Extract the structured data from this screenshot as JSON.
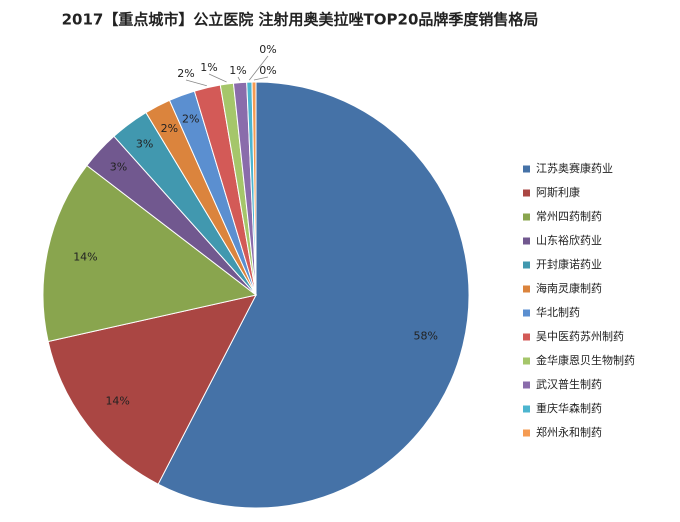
{
  "chart_data": {
    "type": "pie",
    "title": "2017【重点城市】公立医院 注射用奥美拉唑TOP20品牌季度销售格局",
    "categories": [
      "江苏奥赛康药业",
      "阿斯利康",
      "常州四药制药",
      "山东裕欣药业",
      "开封康诺药业",
      "海南灵康制药",
      "华北制药",
      "吴中医药苏州制药",
      "金华康恩贝生物制药",
      "武汉普生制药",
      "重庆华森制药",
      "郑州永和制药"
    ],
    "values": [
      58,
      14,
      14,
      3,
      3,
      2,
      2,
      2,
      1,
      1,
      0.4,
      0.3
    ],
    "value_labels": [
      "58%",
      "14%",
      "14%",
      "3%",
      "3%",
      "2%",
      "2%",
      "2%",
      "1%",
      "1%",
      "0%",
      "0%"
    ],
    "colors": [
      "#4572a7",
      "#aa4643",
      "#89a54e",
      "#71588f",
      "#4198af",
      "#db843d",
      "#5b8fd0",
      "#d35a57",
      "#a5c66a",
      "#8a6cab",
      "#4cb5cf",
      "#f59b52"
    ],
    "legend": "right"
  }
}
